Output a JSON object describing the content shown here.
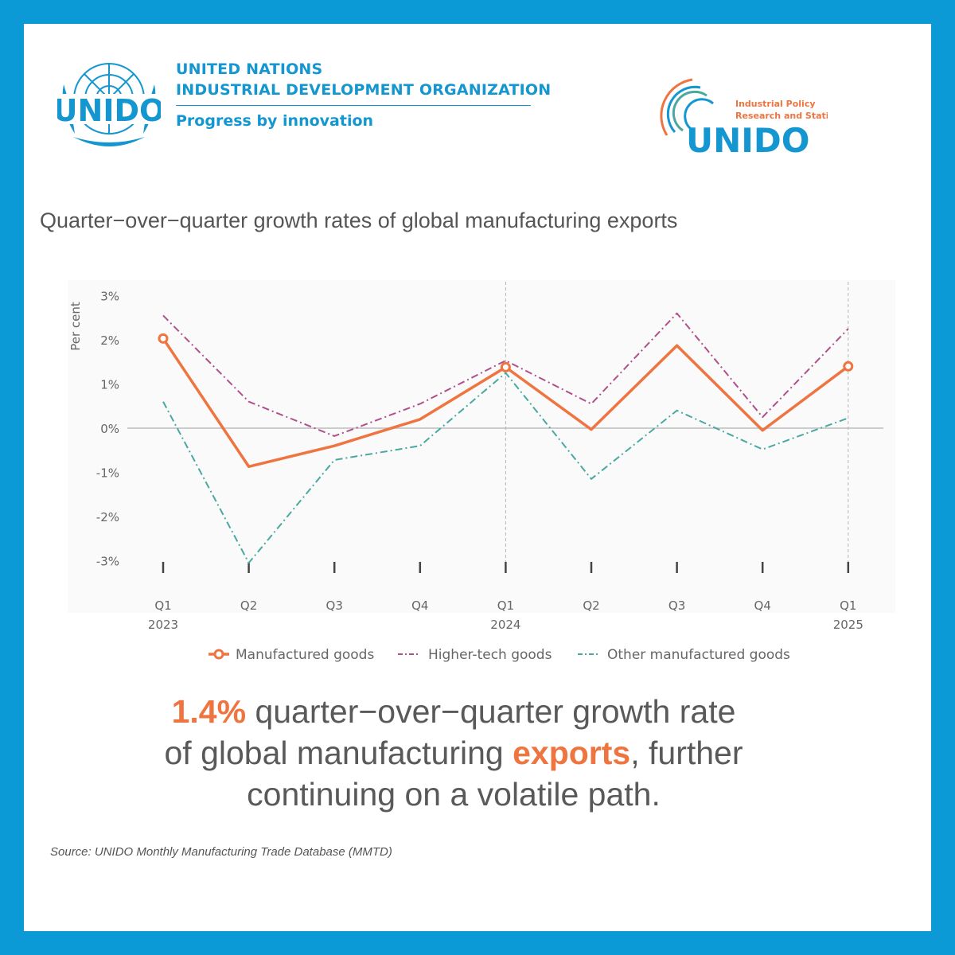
{
  "header": {
    "org_line1": "UNITED NATIONS",
    "org_line2": "INDUSTRIAL DEVELOPMENT ORGANIZATION",
    "tagline": "Progress by innovation",
    "emblem_text": "UNIDO",
    "right_logo_line1": "Industrial Policy",
    "right_logo_line2": "Research and Statistics",
    "right_logo_word": "UNIDO"
  },
  "colors": {
    "frame": "#0b9ad6",
    "brand_blue": "#1496d0",
    "manufactured": "#ee7440",
    "higher_tech": "#b0508a",
    "other": "#4aa8a0"
  },
  "chart_data": {
    "type": "line",
    "title": "Quarter−over−quarter growth rates of global manufacturing exports",
    "ylabel": "Per cent",
    "yticks": [
      "3%",
      "2%",
      "1%",
      "0%",
      "-1%",
      "-2%",
      "-3%"
    ],
    "ylim": [
      -3.5,
      3.3
    ],
    "x": [
      {
        "q": "Q1",
        "year": "2023"
      },
      {
        "q": "Q2",
        "year": ""
      },
      {
        "q": "Q3",
        "year": ""
      },
      {
        "q": "Q4",
        "year": ""
      },
      {
        "q": "Q1",
        "year": "2024"
      },
      {
        "q": "Q2",
        "year": ""
      },
      {
        "q": "Q3",
        "year": ""
      },
      {
        "q": "Q4",
        "year": ""
      },
      {
        "q": "Q1",
        "year": "2025"
      }
    ],
    "year_dividers_at": [
      4,
      8
    ],
    "series": [
      {
        "name": "Manufactured goods",
        "key": "manufactured",
        "values": [
          2.03,
          -0.87,
          -0.4,
          0.2,
          1.38,
          -0.03,
          1.87,
          -0.05,
          1.4
        ]
      },
      {
        "name": "Higher-tech goods",
        "key": "higher_tech",
        "values": [
          2.55,
          0.6,
          -0.18,
          0.55,
          1.53,
          0.55,
          2.6,
          0.25,
          2.25
        ]
      },
      {
        "name": "Other manufactured goods",
        "key": "other",
        "values": [
          0.6,
          -3.05,
          -0.72,
          -0.4,
          1.25,
          -1.15,
          0.4,
          -0.48,
          0.23
        ]
      }
    ],
    "grid": false,
    "legend": "bottom"
  },
  "headline": {
    "value": "1.4%",
    "part1": " quarter−over−quarter growth rate",
    "part2": "of global manufacturing ",
    "keyword": "exports",
    "part3": ", further",
    "part4": "continuing on a volatile path."
  },
  "source": "Source: UNIDO Monthly Manufacturing Trade Database (MMTD)"
}
